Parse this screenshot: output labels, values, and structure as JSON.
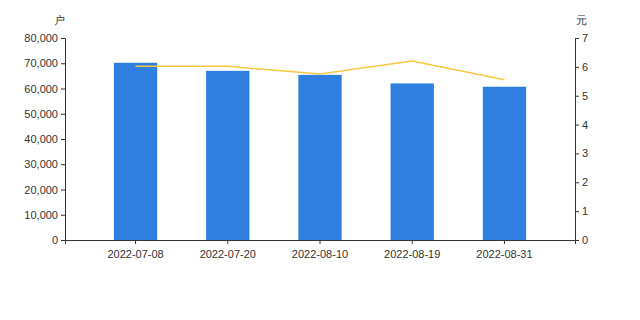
{
  "chart_data": {
    "type": "bar",
    "y_label": "户",
    "y2_label": "元",
    "categories": [
      "2022-07-08",
      "2022-07-20",
      "2022-08-10",
      "2022-08-19",
      "2022-08-31"
    ],
    "series": [
      {
        "type": "bar",
        "color": "#2e7fe0",
        "values": [
          70200,
          67000,
          65400,
          62000,
          60700
        ]
      },
      {
        "type": "line",
        "color": "#f5c842",
        "axis": "y2",
        "values": [
          6.02,
          6.02,
          5.75,
          6.2,
          5.55
        ]
      }
    ],
    "ylim": [
      0,
      80000
    ],
    "yticks": [
      0,
      {
        "value": 10000,
        "label": "10,000"
      },
      {
        "value": 20000,
        "label": "20,000"
      },
      {
        "value": 30000,
        "label": "30,000"
      },
      {
        "value": 40000,
        "label": "40,000"
      },
      {
        "value": 50000,
        "label": "50,000"
      },
      {
        "value": 60000,
        "label": "60,000"
      },
      {
        "value": 70000,
        "label": "70,000"
      },
      {
        "value": 80000,
        "label": "80,000"
      }
    ],
    "y2lim": [
      0,
      7
    ],
    "y2ticks": [
      0,
      1,
      2,
      3,
      4,
      5,
      6,
      7
    ],
    "grid": false
  }
}
